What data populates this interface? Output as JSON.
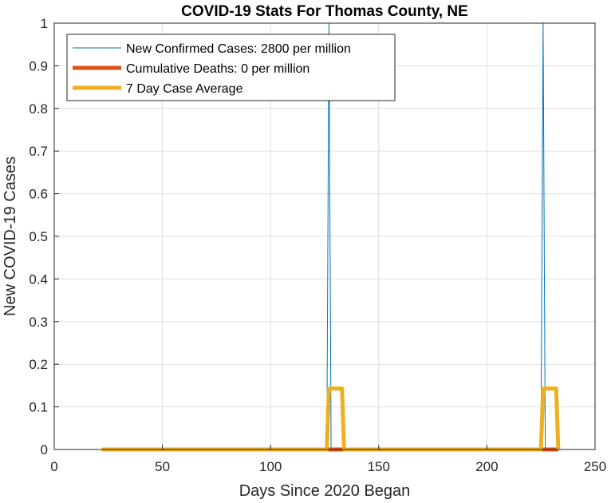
{
  "chart_data": {
    "type": "line",
    "title": "COVID-19 Stats For Thomas County, NE",
    "xlabel": "Days Since 2020 Began",
    "ylabel": "New COVID-19 Cases",
    "xlim": [
      0,
      250
    ],
    "ylim": [
      0,
      1
    ],
    "xticks": [
      0,
      50,
      100,
      150,
      200,
      250
    ],
    "yticks": [
      0,
      0.1,
      0.2,
      0.3,
      0.4,
      0.5,
      0.6,
      0.7,
      0.8,
      0.9,
      1
    ],
    "grid": true,
    "legend_position": "top-left",
    "series": [
      {
        "name": "New Confirmed Cases: 2800 per million",
        "color": "#0072BD",
        "x": [
          22,
          126,
          127,
          128,
          225,
          226,
          227,
          233
        ],
        "y": [
          0,
          0,
          1,
          0,
          0,
          1,
          0,
          0
        ]
      },
      {
        "name": "Cumulative Deaths: 0 per million",
        "color": "#D95319",
        "x": [
          22,
          233
        ],
        "y": [
          0,
          0
        ]
      },
      {
        "name": "7 Day Case Average",
        "color": "#EDB120",
        "x": [
          22,
          126,
          127,
          133,
          134,
          225,
          226,
          232,
          233
        ],
        "y": [
          0,
          0,
          0.143,
          0.143,
          0,
          0,
          0.143,
          0.143,
          0
        ]
      }
    ]
  }
}
